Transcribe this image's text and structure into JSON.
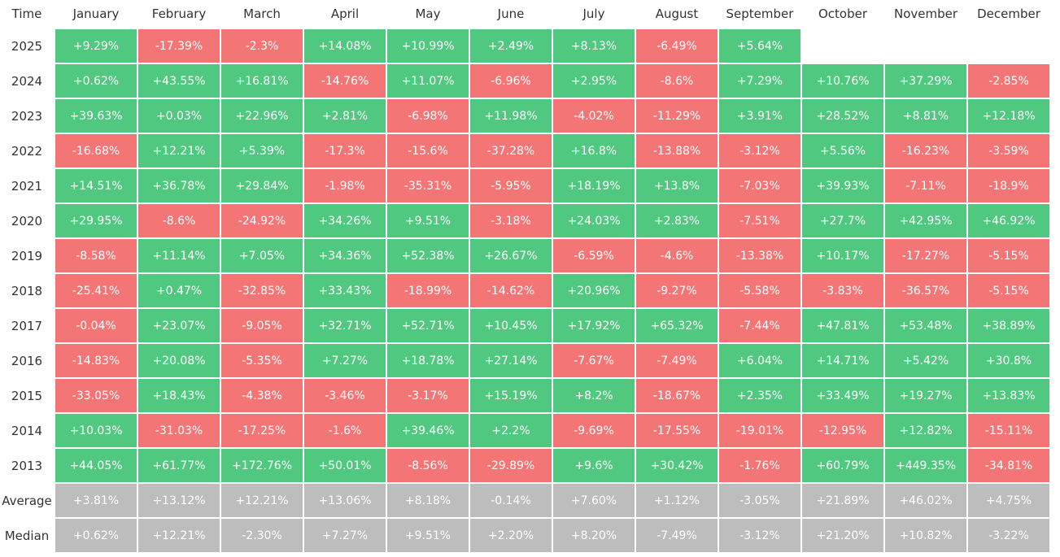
{
  "table": {
    "corner": "Time",
    "columns": [
      "January",
      "February",
      "March",
      "April",
      "May",
      "June",
      "July",
      "August",
      "September",
      "October",
      "November",
      "December"
    ],
    "rows": [
      {
        "label": "2025",
        "cells": [
          "+9.29%",
          "-17.39%",
          "-2.3%",
          "+14.08%",
          "+10.99%",
          "+2.49%",
          "+8.13%",
          "-6.49%",
          "+5.64%"
        ]
      },
      {
        "label": "2024",
        "cells": [
          "+0.62%",
          "+43.55%",
          "+16.81%",
          "-14.76%",
          "+11.07%",
          "-6.96%",
          "+2.95%",
          "-8.6%",
          "+7.29%",
          "+10.76%",
          "+37.29%",
          "-2.85%"
        ]
      },
      {
        "label": "2023",
        "cells": [
          "+39.63%",
          "+0.03%",
          "+22.96%",
          "+2.81%",
          "-6.98%",
          "+11.98%",
          "-4.02%",
          "-11.29%",
          "+3.91%",
          "+28.52%",
          "+8.81%",
          "+12.18%"
        ]
      },
      {
        "label": "2022",
        "cells": [
          "-16.68%",
          "+12.21%",
          "+5.39%",
          "-17.3%",
          "-15.6%",
          "-37.28%",
          "+16.8%",
          "-13.88%",
          "-3.12%",
          "+5.56%",
          "-16.23%",
          "-3.59%"
        ]
      },
      {
        "label": "2021",
        "cells": [
          "+14.51%",
          "+36.78%",
          "+29.84%",
          "-1.98%",
          "-35.31%",
          "-5.95%",
          "+18.19%",
          "+13.8%",
          "-7.03%",
          "+39.93%",
          "-7.11%",
          "-18.9%"
        ]
      },
      {
        "label": "2020",
        "cells": [
          "+29.95%",
          "-8.6%",
          "-24.92%",
          "+34.26%",
          "+9.51%",
          "-3.18%",
          "+24.03%",
          "+2.83%",
          "-7.51%",
          "+27.7%",
          "+42.95%",
          "+46.92%"
        ]
      },
      {
        "label": "2019",
        "cells": [
          "-8.58%",
          "+11.14%",
          "+7.05%",
          "+34.36%",
          "+52.38%",
          "+26.67%",
          "-6.59%",
          "-4.6%",
          "-13.38%",
          "+10.17%",
          "-17.27%",
          "-5.15%"
        ]
      },
      {
        "label": "2018",
        "cells": [
          "-25.41%",
          "+0.47%",
          "-32.85%",
          "+33.43%",
          "-18.99%",
          "-14.62%",
          "+20.96%",
          "-9.27%",
          "-5.58%",
          "-3.83%",
          "-36.57%",
          "-5.15%"
        ]
      },
      {
        "label": "2017",
        "cells": [
          "-0.04%",
          "+23.07%",
          "-9.05%",
          "+32.71%",
          "+52.71%",
          "+10.45%",
          "+17.92%",
          "+65.32%",
          "-7.44%",
          "+47.81%",
          "+53.48%",
          "+38.89%"
        ]
      },
      {
        "label": "2016",
        "cells": [
          "-14.83%",
          "+20.08%",
          "-5.35%",
          "+7.27%",
          "+18.78%",
          "+27.14%",
          "-7.67%",
          "-7.49%",
          "+6.04%",
          "+14.71%",
          "+5.42%",
          "+30.8%"
        ]
      },
      {
        "label": "2015",
        "cells": [
          "-33.05%",
          "+18.43%",
          "-4.38%",
          "-3.46%",
          "-3.17%",
          "+15.19%",
          "+8.2%",
          "-18.67%",
          "+2.35%",
          "+33.49%",
          "+19.27%",
          "+13.83%"
        ]
      },
      {
        "label": "2014",
        "cells": [
          "+10.03%",
          "-31.03%",
          "-17.25%",
          "-1.6%",
          "+39.46%",
          "+2.2%",
          "-9.69%",
          "-17.55%",
          "-19.01%",
          "-12.95%",
          "+12.82%",
          "-15.11%"
        ]
      },
      {
        "label": "2013",
        "cells": [
          "+44.05%",
          "+61.77%",
          "+172.76%",
          "+50.01%",
          "-8.56%",
          "-29.89%",
          "+9.6%",
          "+30.42%",
          "-1.76%",
          "+60.79%",
          "+449.35%",
          "-34.81%"
        ]
      }
    ],
    "summary_rows": [
      {
        "label": "Average",
        "cells": [
          "+3.81%",
          "+13.12%",
          "+12.21%",
          "+13.06%",
          "+8.18%",
          "-0.14%",
          "+7.60%",
          "+1.12%",
          "-3.05%",
          "+21.89%",
          "+46.02%",
          "+4.75%"
        ]
      },
      {
        "label": "Median",
        "cells": [
          "+0.62%",
          "+12.21%",
          "-2.30%",
          "+7.27%",
          "+9.51%",
          "+2.20%",
          "+8.20%",
          "-7.49%",
          "-3.12%",
          "+21.20%",
          "+10.82%",
          "-3.22%"
        ]
      }
    ]
  }
}
